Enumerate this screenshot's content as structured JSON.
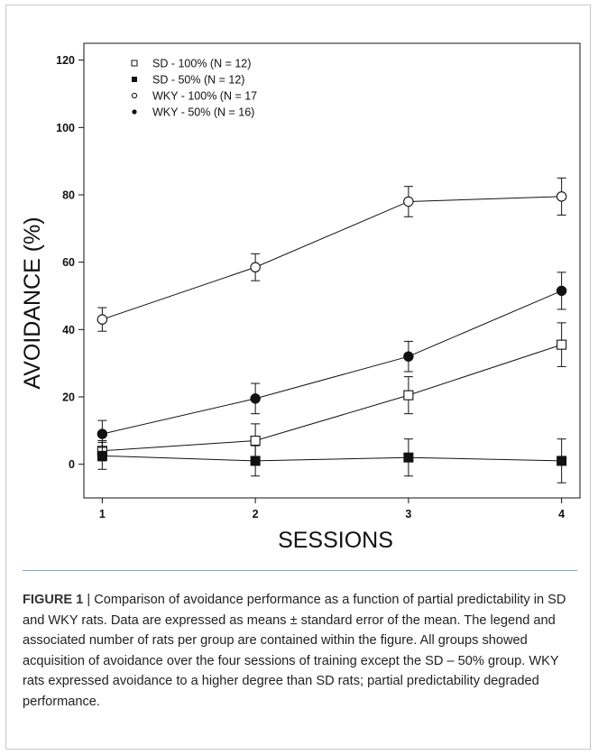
{
  "chart_data": {
    "type": "line",
    "title": "",
    "xlabel": "SESSIONS",
    "ylabel": "AVOIDANCE (%)",
    "x": [
      1,
      2,
      3,
      4
    ],
    "xlim": [
      0.88,
      4.12
    ],
    "ylim": [
      -10,
      125
    ],
    "x_ticks": [
      "1",
      "2",
      "3",
      "4"
    ],
    "y_ticks": [
      "0",
      "20",
      "40",
      "60",
      "80",
      "100",
      "120"
    ],
    "y_tick_values": [
      0,
      20,
      40,
      60,
      80,
      100,
      120
    ],
    "grid": false,
    "legend_placement": "top-left",
    "series": [
      {
        "name": "SD - 100% (N = 12)",
        "marker": "open-square",
        "values": [
          4,
          7,
          20.5,
          35.5
        ],
        "errors": [
          3,
          5,
          5.5,
          6.5
        ]
      },
      {
        "name": "SD - 50% (N = 12)",
        "marker": "filled-square",
        "values": [
          2.5,
          1,
          2,
          1
        ],
        "errors": [
          4,
          4.5,
          5.5,
          6.5
        ]
      },
      {
        "name": "WKY - 100% (N = 17",
        "marker": "open-circle",
        "values": [
          43,
          58.5,
          78,
          79.5
        ],
        "errors": [
          3.5,
          4,
          4.5,
          5.5
        ]
      },
      {
        "name": "WKY - 50% (N = 16)",
        "marker": "filled-circle",
        "values": [
          9,
          19.5,
          32,
          51.5
        ],
        "errors": [
          4,
          4.5,
          4.5,
          5.5
        ]
      }
    ]
  },
  "caption": {
    "label": "FIGURE 1",
    "separator": " | ",
    "text": "Comparison of avoidance performance as a function of partial predictability in SD and WKY rats. Data are expressed as means ± standard error of the mean. The legend and associated number of rats per group are contained within the figure. All groups showed acquisition of avoidance over the four sessions of training except the SD – 50% group. WKY rats expressed avoidance to a higher degree than SD rats; partial predictability degraded performance."
  },
  "colors": {
    "ink": "#111111",
    "caption_rule": "#8ea6b8"
  }
}
